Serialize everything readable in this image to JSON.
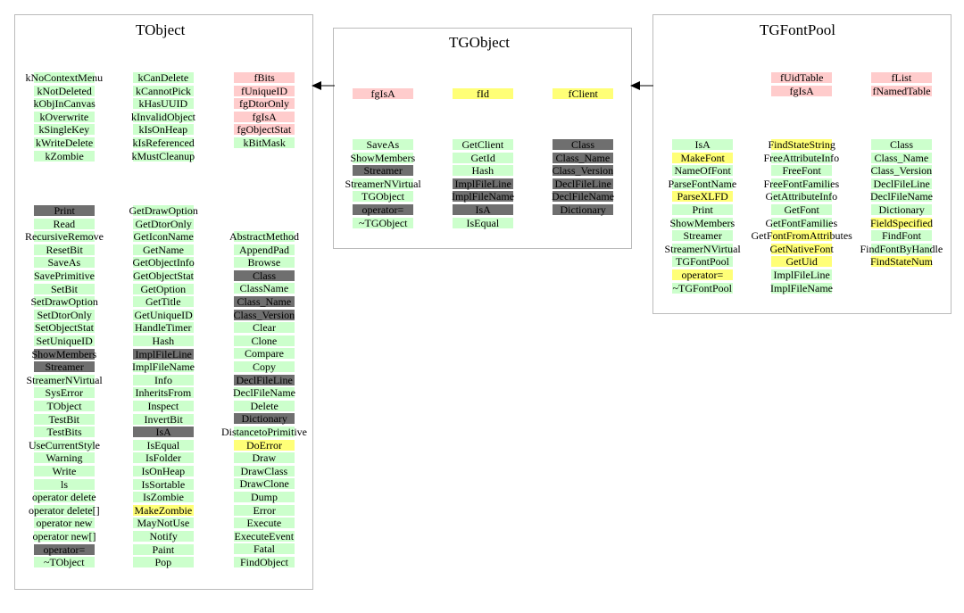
{
  "colors": {
    "green": "#ccffcc",
    "yellow": "#ffff77",
    "red": "#ffcccc",
    "dark": "#6f6f6f"
  },
  "tobject": {
    "title": "TObject",
    "col1": [
      [
        "kNoContextMenu",
        "g"
      ],
      [
        "kNotDeleted",
        "g"
      ],
      [
        "kObjInCanvas",
        "g"
      ],
      [
        "kOverwrite",
        "g"
      ],
      [
        "kSingleKey",
        "g"
      ],
      [
        "kWriteDelete",
        "g"
      ],
      [
        "kZombie",
        "g"
      ]
    ],
    "col2": [
      [
        "kCanDelete",
        "g"
      ],
      [
        "kCannotPick",
        "g"
      ],
      [
        "kHasUUID",
        "g"
      ],
      [
        "kInvalidObject",
        "g"
      ],
      [
        "kIsOnHeap",
        "g"
      ],
      [
        "kIsReferenced",
        "g"
      ],
      [
        "kMustCleanup",
        "g"
      ]
    ],
    "col3": [
      [
        "fBits",
        "r"
      ],
      [
        "fUniqueID",
        "r"
      ],
      [
        "fgDtorOnly",
        "r"
      ],
      [
        "fgIsA",
        "r"
      ],
      [
        "fgObjectStat",
        "r"
      ],
      [
        "kBitMask",
        "g"
      ]
    ],
    "m1": [
      [
        "Print",
        "d"
      ],
      [
        "Read",
        "g"
      ],
      [
        "RecursiveRemove",
        "g"
      ],
      [
        "ResetBit",
        "g"
      ],
      [
        "SaveAs",
        "g"
      ],
      [
        "SavePrimitive",
        "g"
      ],
      [
        "SetBit",
        "g"
      ],
      [
        "SetDrawOption",
        "g"
      ],
      [
        "SetDtorOnly",
        "g"
      ],
      [
        "SetObjectStat",
        "g"
      ],
      [
        "SetUniqueID",
        "g"
      ],
      [
        "ShowMembers",
        "d"
      ],
      [
        "Streamer",
        "d"
      ],
      [
        "StreamerNVirtual",
        "g"
      ],
      [
        "SysError",
        "g"
      ],
      [
        "TObject",
        "g"
      ],
      [
        "TestBit",
        "g"
      ],
      [
        "TestBits",
        "g"
      ],
      [
        "UseCurrentStyle",
        "g"
      ],
      [
        "Warning",
        "g"
      ],
      [
        "Write",
        "g"
      ],
      [
        "ls",
        "g"
      ],
      [
        "operator delete",
        "g"
      ],
      [
        "operator delete[]",
        "g"
      ],
      [
        "operator new",
        "g"
      ],
      [
        "operator new[]",
        "g"
      ],
      [
        "operator=",
        "d"
      ],
      [
        "~TObject",
        "g"
      ]
    ],
    "m2": [
      [
        "GetDrawOption",
        "g"
      ],
      [
        "GetDtorOnly",
        "g"
      ],
      [
        "GetIconName",
        "g"
      ],
      [
        "GetName",
        "g"
      ],
      [
        "GetObjectInfo",
        "g"
      ],
      [
        "GetObjectStat",
        "g"
      ],
      [
        "GetOption",
        "g"
      ],
      [
        "GetTitle",
        "g"
      ],
      [
        "GetUniqueID",
        "g"
      ],
      [
        "HandleTimer",
        "g"
      ],
      [
        "Hash",
        "g"
      ],
      [
        "ImplFileLine",
        "d"
      ],
      [
        "ImplFileName",
        "g"
      ],
      [
        "Info",
        "g"
      ],
      [
        "InheritsFrom",
        "g"
      ],
      [
        "Inspect",
        "g"
      ],
      [
        "InvertBit",
        "g"
      ],
      [
        "IsA",
        "d"
      ],
      [
        "IsEqual",
        "g"
      ],
      [
        "IsFolder",
        "g"
      ],
      [
        "IsOnHeap",
        "g"
      ],
      [
        "IsSortable",
        "g"
      ],
      [
        "IsZombie",
        "g"
      ],
      [
        "MakeZombie",
        "y"
      ],
      [
        "MayNotUse",
        "g"
      ],
      [
        "Notify",
        "g"
      ],
      [
        "Paint",
        "g"
      ],
      [
        "Pop",
        "g"
      ]
    ],
    "m3": [
      [
        "AbstractMethod",
        "g"
      ],
      [
        "AppendPad",
        "g"
      ],
      [
        "Browse",
        "g"
      ],
      [
        "Class",
        "d"
      ],
      [
        "ClassName",
        "g"
      ],
      [
        "Class_Name",
        "d"
      ],
      [
        "Class_Version",
        "d"
      ],
      [
        "Clear",
        "g"
      ],
      [
        "Clone",
        "g"
      ],
      [
        "Compare",
        "g"
      ],
      [
        "Copy",
        "g"
      ],
      [
        "DeclFileLine",
        "d"
      ],
      [
        "DeclFileName",
        "g"
      ],
      [
        "Delete",
        "g"
      ],
      [
        "Dictionary",
        "d"
      ],
      [
        "DistancetoPrimitive",
        "g"
      ],
      [
        "DoError",
        "y"
      ],
      [
        "Draw",
        "g"
      ],
      [
        "DrawClass",
        "g"
      ],
      [
        "DrawClone",
        "g"
      ],
      [
        "Dump",
        "g"
      ],
      [
        "Error",
        "g"
      ],
      [
        "Execute",
        "g"
      ],
      [
        "ExecuteEvent",
        "g"
      ],
      [
        "Fatal",
        "g"
      ],
      [
        "FindObject",
        "g"
      ]
    ]
  },
  "tgobject": {
    "title": "TGObject",
    "col1": [
      [
        "fgIsA",
        "r"
      ]
    ],
    "col2": [
      [
        "fId",
        "y"
      ]
    ],
    "col3": [
      [
        "fClient",
        "y"
      ]
    ],
    "m1": [
      [
        "SaveAs",
        "g"
      ],
      [
        "ShowMembers",
        "g"
      ],
      [
        "Streamer",
        "d"
      ],
      [
        "StreamerNVirtual",
        "g"
      ],
      [
        "TGObject",
        "g"
      ],
      [
        "operator=",
        "d"
      ],
      [
        "~TGObject",
        "g"
      ]
    ],
    "m2": [
      [
        "GetClient",
        "g"
      ],
      [
        "GetId",
        "g"
      ],
      [
        "Hash",
        "g"
      ],
      [
        "ImplFileLine",
        "d"
      ],
      [
        "ImplFileName",
        "d"
      ],
      [
        "IsA",
        "d"
      ],
      [
        "IsEqual",
        "g"
      ]
    ],
    "m3": [
      [
        "Class",
        "d"
      ],
      [
        "Class_Name",
        "d"
      ],
      [
        "Class_Version",
        "d"
      ],
      [
        "DeclFileLine",
        "d"
      ],
      [
        "DeclFileName",
        "d"
      ],
      [
        "Dictionary",
        "d"
      ]
    ]
  },
  "tgfontpool": {
    "title": "TGFontPool",
    "col2": [
      [
        "fUidTable",
        "r"
      ],
      [
        "fgIsA",
        "r"
      ]
    ],
    "col3": [
      [
        "fList",
        "r"
      ],
      [
        "fNamedTable",
        "r"
      ]
    ],
    "m1": [
      [
        "IsA",
        "g"
      ],
      [
        "MakeFont",
        "y"
      ],
      [
        "NameOfFont",
        "g"
      ],
      [
        "ParseFontName",
        "g"
      ],
      [
        "ParseXLFD",
        "y"
      ],
      [
        "Print",
        "g"
      ],
      [
        "ShowMembers",
        "g"
      ],
      [
        "Streamer",
        "g"
      ],
      [
        "StreamerNVirtual",
        "g"
      ],
      [
        "TGFontPool",
        "g"
      ],
      [
        "operator=",
        "y"
      ],
      [
        "~TGFontPool",
        "g"
      ]
    ],
    "m2": [
      [
        "FindStateString",
        "y"
      ],
      [
        "FreeAttributeInfo",
        "g"
      ],
      [
        "FreeFont",
        "g"
      ],
      [
        "FreeFontFamilies",
        "g"
      ],
      [
        "GetAttributeInfo",
        "g"
      ],
      [
        "GetFont",
        "g"
      ],
      [
        "GetFontFamilies",
        "g"
      ],
      [
        "GetFontFromAttributes",
        "y"
      ],
      [
        "GetNativeFont",
        "y"
      ],
      [
        "GetUid",
        "y"
      ],
      [
        "ImplFileLine",
        "g"
      ],
      [
        "ImplFileName",
        "g"
      ]
    ],
    "m3": [
      [
        "Class",
        "g"
      ],
      [
        "Class_Name",
        "g"
      ],
      [
        "Class_Version",
        "g"
      ],
      [
        "DeclFileLine",
        "g"
      ],
      [
        "DeclFileName",
        "g"
      ],
      [
        "Dictionary",
        "g"
      ],
      [
        "FieldSpecified",
        "y"
      ],
      [
        "FindFont",
        "g"
      ],
      [
        "FindFontByHandle",
        "g"
      ],
      [
        "FindStateNum",
        "y"
      ]
    ]
  }
}
